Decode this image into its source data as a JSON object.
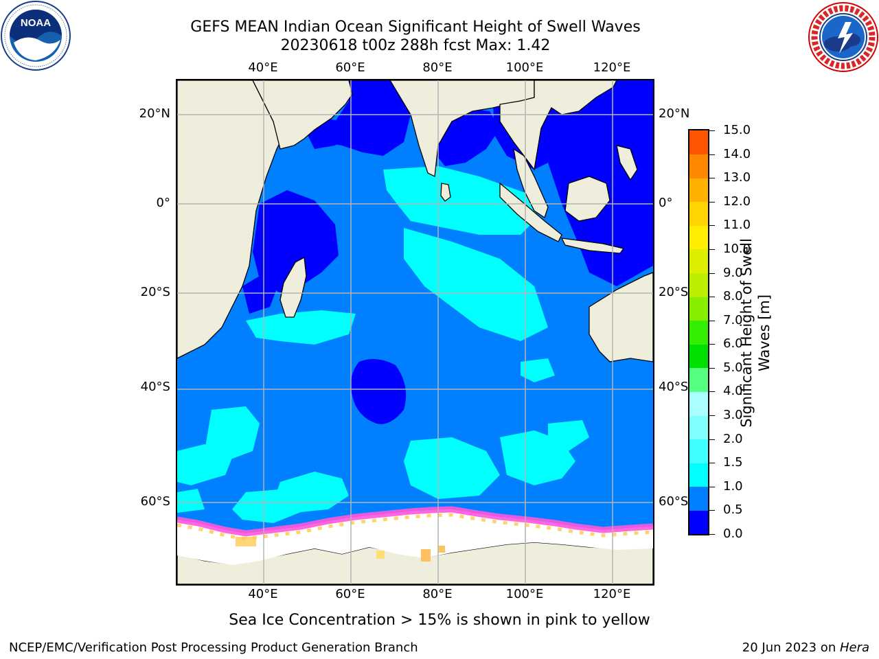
{
  "header": {
    "title_line1": "GEFS MEAN Indian Ocean Significant Height of Swell Waves",
    "title_line2": "20230618 t00z 288h fcst   Max: 1.42"
  },
  "logos": {
    "left": {
      "icon": "noaa-logo",
      "text": "NOAA",
      "ring_text": "NATIONAL OCEANIC AND ATMOSPHERIC ADMINISTRATION · U.S. DEPARTMENT OF COMMERCE"
    },
    "right": {
      "icon": "nws-logo",
      "ring_text": "NATIONAL WEATHER SERVICE"
    }
  },
  "map": {
    "lon_ticks": [
      "40°E",
      "60°E",
      "80°E",
      "100°E",
      "120°E"
    ],
    "lat_ticks_left": [
      "20°N",
      "0°",
      "20°S",
      "40°S",
      "60°S"
    ],
    "lat_ticks_right": [
      "20°N",
      "0°",
      "20°S",
      "40°S",
      "60°S"
    ],
    "colors": {
      "land": "#efeedd",
      "ice": "#ffffff",
      "grid": "#b4b4b4",
      "coast": "#000000"
    }
  },
  "colorbar": {
    "title": "Significant Height of Swell Waves [m]",
    "title_line1": "Significant Height of Swell",
    "title_line2": "Waves [m]",
    "labels": [
      "0.0",
      "0.5",
      "1.0",
      "1.5",
      "2.0",
      "3.0",
      "4.0",
      "5.0",
      "6.0",
      "7.0",
      "8.0",
      "9.0",
      "10.0",
      "11.0",
      "12.0",
      "13.0",
      "14.0",
      "15.0"
    ],
    "colors": [
      "#0000ff",
      "#0080ff",
      "#00ffff",
      "#40ffff",
      "#80ffff",
      "#aaffff",
      "#55ff80",
      "#00e000",
      "#33ee00",
      "#88ee00",
      "#bbee00",
      "#ddee00",
      "#ffee00",
      "#ffd400",
      "#ffb000",
      "#ff8800",
      "#ff5500",
      "#ff2200",
      "#ff0000"
    ]
  },
  "footer": {
    "ice_note": "Sea Ice Concentration > 15% is shown in pink to yellow",
    "credit": "NCEP/EMC/Verification Post Processing Product Generation Branch",
    "date": "20 Jun 2023 on ",
    "host": "Hera"
  }
}
